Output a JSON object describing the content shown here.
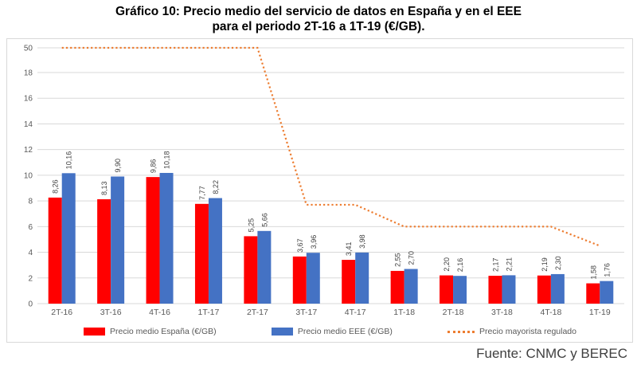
{
  "title": {
    "line1": "Gráfico 10: Precio medio del servicio de datos en España y en el EEE",
    "line2": "para el periodo 2T-16 a 1T-19 (€/GB)."
  },
  "source": "Fuente: CNMC y BEREC",
  "colors": {
    "espana": "#FF0000",
    "eee": "#4472C4",
    "mayorista": "#ED7D31",
    "gridline": "#D9D9D9",
    "axis_text": "#595959",
    "value_label_text": "#404040"
  },
  "chart_data": {
    "type": "bar",
    "title": "Gráfico 10: Precio medio del servicio de datos en España y en el EEE para el periodo 2T-16 a 1T-19 (€/GB).",
    "categories": [
      "2T-16",
      "3T-16",
      "4T-16",
      "1T-17",
      "2T-17",
      "3T-17",
      "4T-17",
      "1T-18",
      "2T-18",
      "3T-18",
      "4T-18",
      "1T-19"
    ],
    "series": [
      {
        "name": "Precio medio España (€/GB)",
        "color_key": "espana",
        "values": [
          8.26,
          8.13,
          9.86,
          7.77,
          5.25,
          3.67,
          3.41,
          2.55,
          2.2,
          2.17,
          2.19,
          1.58
        ],
        "labels": [
          "8,26",
          "8,13",
          "9,86",
          "7,77",
          "5,25",
          "3,67",
          "3,41",
          "2,55",
          "2,20",
          "2,17",
          "2,19",
          "1,58"
        ]
      },
      {
        "name": "Precio medio EEE (€/GB)",
        "color_key": "eee",
        "values": [
          10.16,
          9.9,
          10.18,
          8.22,
          5.66,
          3.96,
          3.98,
          2.7,
          2.16,
          2.21,
          2.3,
          1.76
        ],
        "labels": [
          "10,16",
          "9,90",
          "10,18",
          "8,22",
          "5,66",
          "3,96",
          "3,98",
          "2,70",
          "2,16",
          "2,21",
          "2,30",
          "1,76"
        ]
      }
    ],
    "line_series": {
      "name": "Precio mayorista regulado",
      "color_key": "mayorista",
      "style": "dotted",
      "values": [
        50,
        50,
        50,
        50,
        50,
        7.7,
        7.7,
        6,
        6,
        6,
        6,
        4.5
      ]
    },
    "y_ticks": [
      0,
      2,
      4,
      6,
      8,
      10,
      12,
      14,
      16,
      18,
      50
    ],
    "axis_break": {
      "linear_max": 18,
      "top_value": 50
    },
    "ylim": [
      0,
      50
    ],
    "grid": true,
    "legend_position": "bottom"
  }
}
